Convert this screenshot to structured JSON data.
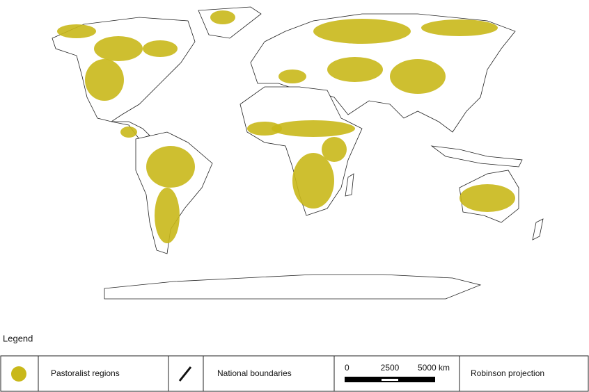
{
  "legend": {
    "title": "Legend",
    "items": [
      "Pastoralist regions",
      "National boundaries",
      "Robinson projection"
    ],
    "scale_bar": {
      "ticks": [
        0,
        2500,
        {
          "value": 5000,
          "label": "5000 km"
        }
      ]
    }
  }
}
